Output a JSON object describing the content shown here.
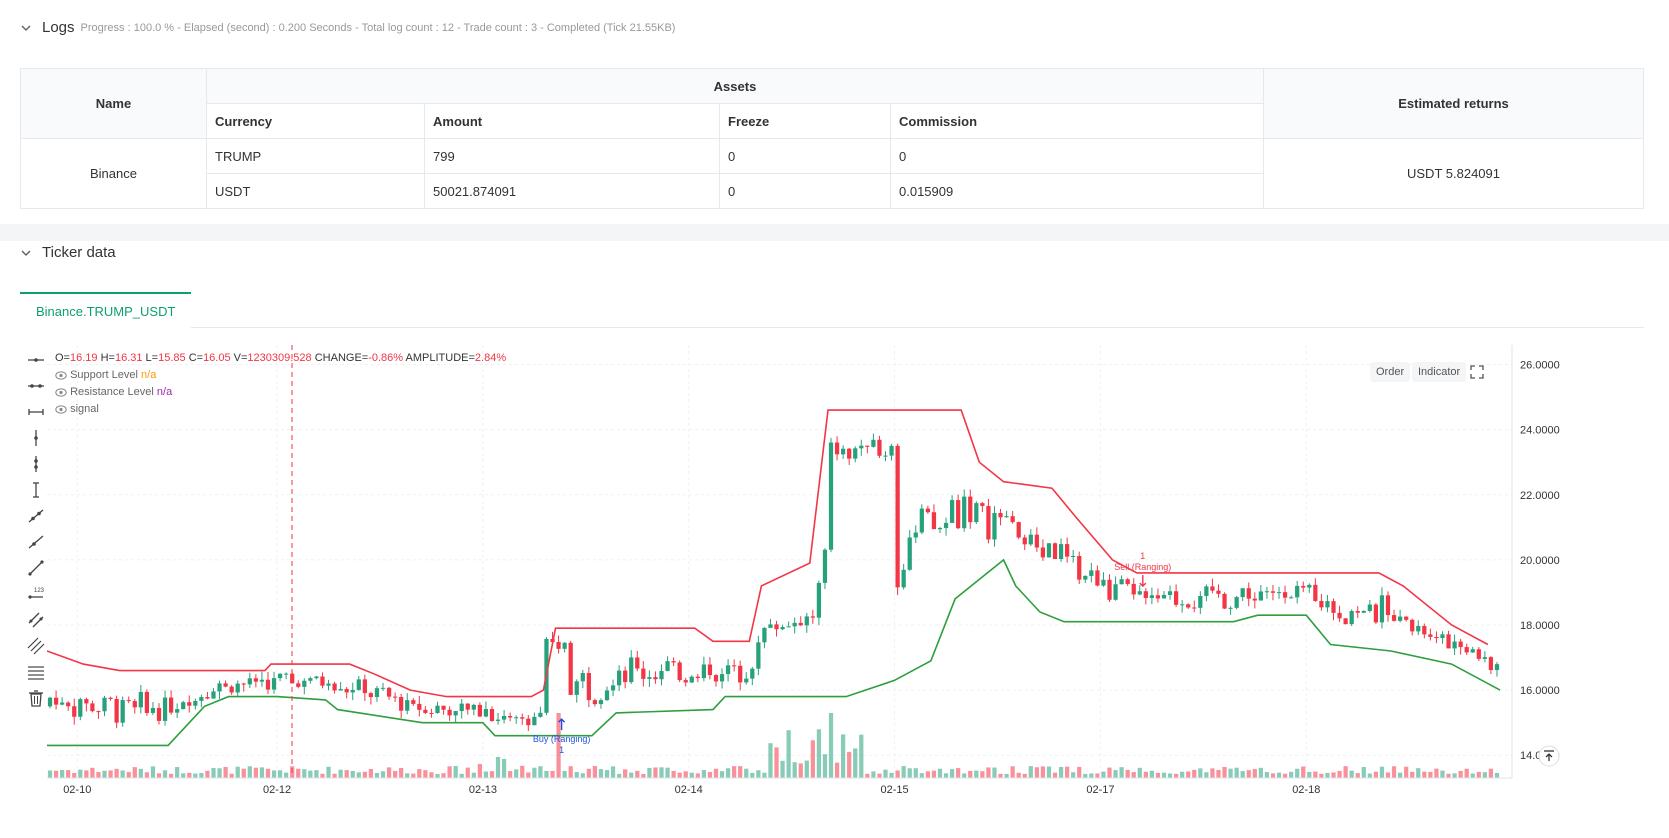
{
  "logs": {
    "title": "Logs",
    "status": "Progress : 100.0 % - Elapsed (second) : 0.200  Seconds - Total log count : 12 - Trade count : 3 - Completed (Tick 21.55KB)"
  },
  "assets_table": {
    "headers": {
      "name": "Name",
      "assets": "Assets",
      "currency": "Currency",
      "amount": "Amount",
      "freeze": "Freeze",
      "commission": "Commission",
      "estimated": "Estimated returns"
    },
    "exchange": "Binance",
    "rows": [
      {
        "currency": "TRUMP",
        "amount": "799",
        "freeze": "0",
        "commission": "0"
      },
      {
        "currency": "USDT",
        "amount": "50021.874091",
        "freeze": "0",
        "commission": "0.015909"
      }
    ],
    "estimated_returns": "USDT 5.824091"
  },
  "ticker": {
    "title": "Ticker data",
    "tab": "Binance.TRUMP_USDT"
  },
  "ohlc": {
    "o_label": "O=",
    "o": "16.19",
    "h_label": "H=",
    "h": "16.31",
    "l_label": "L=",
    "l": "15.85",
    "c_label": "C=",
    "c": "16.05",
    "v_label": "V=",
    "v": "1230309.528",
    "change_label": "CHANGE=",
    "change": "-0.86%",
    "amp_label": "AMPLITUDE=",
    "amp": "2.84%"
  },
  "legend": [
    {
      "name": "Support Level",
      "value": "n/a"
    },
    {
      "name": "Resistance Level",
      "value": "n/a"
    },
    {
      "name": "signal",
      "value": ""
    }
  ],
  "chart_buttons": {
    "order": "Order",
    "indicator": "Indicator"
  },
  "annotations": {
    "sell_count": "1",
    "sell_label": "Sell (Ranging)",
    "buy_label": "Buy (Ranging)",
    "buy_count": "1"
  },
  "chart_data": {
    "type": "line",
    "x_ticks": [
      "02-10",
      "02-12",
      "02-13",
      "02-14",
      "02-15",
      "02-17",
      "02-18"
    ],
    "y_ticks": [
      "26.0000",
      "24.0000",
      "22.0000",
      "20.0000",
      "18.0000",
      "16.0000",
      "14.0000"
    ],
    "ylim": [
      13.3,
      26.6
    ],
    "series": [
      {
        "name": "Resistance Level",
        "color": "#f23645",
        "points": [
          [
            0,
            17.2
          ],
          [
            6,
            16.8
          ],
          [
            12,
            16.6
          ],
          [
            36,
            16.6
          ],
          [
            37,
            16.8
          ],
          [
            50,
            16.8
          ],
          [
            54,
            16.5
          ],
          [
            60,
            16.0
          ],
          [
            66,
            15.8
          ],
          [
            80,
            15.8
          ],
          [
            82,
            16.0
          ],
          [
            84,
            17.9
          ],
          [
            107,
            17.9
          ],
          [
            110,
            17.5
          ],
          [
            116,
            17.5
          ],
          [
            118,
            19.2
          ],
          [
            126,
            19.9
          ],
          [
            129,
            24.6
          ],
          [
            151,
            24.6
          ],
          [
            154,
            23.0
          ],
          [
            158,
            22.4
          ],
          [
            166,
            22.2
          ],
          [
            170,
            21.3
          ],
          [
            176,
            20.0
          ],
          [
            180,
            19.6
          ],
          [
            220,
            19.6
          ],
          [
            224,
            19.2
          ],
          [
            232,
            18.0
          ],
          [
            238,
            17.4
          ]
        ]
      },
      {
        "name": "Support Level",
        "color": "#2e9e3e",
        "points": [
          [
            0,
            14.3
          ],
          [
            20,
            14.3
          ],
          [
            26,
            15.5
          ],
          [
            30,
            15.8
          ],
          [
            38,
            15.8
          ],
          [
            46,
            15.7
          ],
          [
            48,
            15.4
          ],
          [
            62,
            15.0
          ],
          [
            72,
            15.0
          ],
          [
            74,
            14.6
          ],
          [
            90,
            14.6
          ],
          [
            94,
            15.3
          ],
          [
            110,
            15.4
          ],
          [
            112,
            15.8
          ],
          [
            132,
            15.8
          ],
          [
            140,
            16.3
          ],
          [
            146,
            16.9
          ],
          [
            150,
            18.8
          ],
          [
            154,
            19.4
          ],
          [
            158,
            20.0
          ],
          [
            160,
            19.2
          ],
          [
            164,
            18.4
          ],
          [
            168,
            18.1
          ],
          [
            196,
            18.1
          ],
          [
            200,
            18.3
          ],
          [
            208,
            18.3
          ],
          [
            212,
            17.4
          ],
          [
            222,
            17.2
          ],
          [
            232,
            16.8
          ],
          [
            240,
            16.0
          ]
        ]
      }
    ]
  }
}
